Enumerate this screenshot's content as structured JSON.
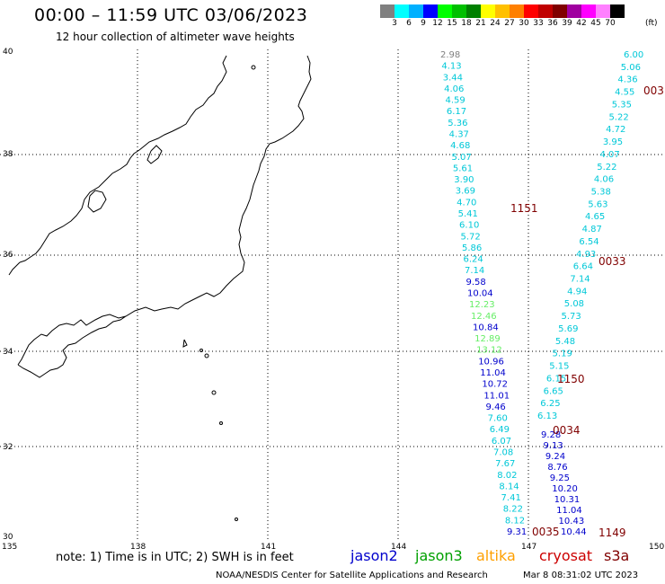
{
  "header": {
    "title": "00:00 – 11:59 UTC 03/06/2023",
    "subtitle": "12 hour collection of altimeter wave heights"
  },
  "colorbar": {
    "colors": [
      "#808080",
      "#00ffff",
      "#00b0ff",
      "#0000ff",
      "#00ff00",
      "#00c000",
      "#008000",
      "#ffff00",
      "#ffc000",
      "#ff8000",
      "#ff0000",
      "#c00000",
      "#800000",
      "#a000a0",
      "#ff00ff",
      "#ff80ff",
      "#000000"
    ],
    "labels": [
      "3",
      "6",
      "9",
      "12",
      "15",
      "18",
      "21",
      "24",
      "27",
      "30",
      "33",
      "36",
      "39",
      "42",
      "45",
      "70"
    ],
    "unit": "(ft)"
  },
  "axes": {
    "lon_ticks": [
      "135",
      "138",
      "141",
      "144",
      "147",
      "150"
    ],
    "lat_ticks": [
      "40",
      "38",
      "36",
      "34",
      "32",
      "30"
    ]
  },
  "colors": {
    "jason2": "#0000cc",
    "jason3": "#00a000",
    "altika": "#ffa000",
    "cryosat": "#cc0000",
    "s3a": "#800000",
    "track_cyan": "#00c8d8",
    "track_gray": "#808080",
    "track_green": "#66ee66"
  },
  "tracks": {
    "cyan_left": [
      {
        "v": "2.98",
        "c": "gray"
      },
      {
        "v": "4.13"
      },
      {
        "v": "3.44"
      },
      {
        "v": "4.06"
      },
      {
        "v": "4.59"
      },
      {
        "v": "6.17"
      },
      {
        "v": "5.36"
      },
      {
        "v": "4.37"
      },
      {
        "v": "4.68"
      },
      {
        "v": "5.07"
      },
      {
        "v": "5.61"
      },
      {
        "v": "3.90"
      },
      {
        "v": "3.69"
      },
      {
        "v": "4.70"
      },
      {
        "v": "5.41"
      },
      {
        "v": "6.10"
      },
      {
        "v": "5.72"
      },
      {
        "v": "5.86"
      },
      {
        "v": "6.24"
      },
      {
        "v": "7.14"
      },
      {
        "v": "9.58",
        "c": "blue"
      },
      {
        "v": "10.04",
        "c": "blue"
      },
      {
        "v": "12.23",
        "c": "green"
      },
      {
        "v": "12.46",
        "c": "green"
      },
      {
        "v": "10.84",
        "c": "blue"
      },
      {
        "v": "12.89",
        "c": "green"
      },
      {
        "v": "13.12",
        "c": "green"
      },
      {
        "v": "10.96",
        "c": "blue"
      },
      {
        "v": "11.04",
        "c": "blue"
      },
      {
        "v": "10.72",
        "c": "blue"
      },
      {
        "v": "11.01",
        "c": "blue"
      },
      {
        "v": "9.46",
        "c": "blue"
      },
      {
        "v": "7.60"
      },
      {
        "v": "6.49"
      },
      {
        "v": "6.07"
      },
      {
        "v": "7.08"
      },
      {
        "v": "7.67"
      },
      {
        "v": "8.02"
      },
      {
        "v": "8.14"
      },
      {
        "v": "7.41"
      },
      {
        "v": "8.22"
      },
      {
        "v": "8.12"
      },
      {
        "v": "9.31",
        "c": "blue"
      }
    ],
    "cyan_right": [
      "6.00",
      "5.06",
      "4.36",
      "4.55",
      "5.35",
      "5.22",
      "4.72",
      "3.95",
      "4.07",
      "5.22",
      "4.06",
      "5.38",
      "5.63",
      "4.65",
      "4.87",
      "6.54",
      "4.93",
      "6.64",
      "7.14",
      "4.94",
      "5.08",
      "5.73",
      "5.69",
      "5.48",
      "5.19",
      "5.15",
      "6.15",
      "6.65",
      "6.25",
      "6.13"
    ],
    "blue_right": [
      "9.28",
      "9.13",
      "9.24",
      "8.76",
      "9.25",
      "10.20",
      "10.31",
      "11.04",
      "10.43",
      "10.44"
    ],
    "time_labels": [
      {
        "v": "003",
        "k": "tr"
      },
      {
        "v": "1151",
        "k": "a"
      },
      {
        "v": "0033",
        "k": "b"
      },
      {
        "v": "1150",
        "k": "c"
      },
      {
        "v": "0034",
        "k": "d"
      },
      {
        "v": "0035",
        "k": "e"
      },
      {
        "v": "1149",
        "k": "f"
      }
    ]
  },
  "footer": {
    "note": "note: 1) Time is in UTC; 2) SWH is in feet",
    "legend": [
      "jason2",
      "jason3",
      "altika",
      "cryosat",
      "s3a"
    ],
    "credit": "NOAA/NESDIS Center for Satellite Applications and Research",
    "timestamp": "Mar  8 08:31:02 UTC 2023"
  }
}
